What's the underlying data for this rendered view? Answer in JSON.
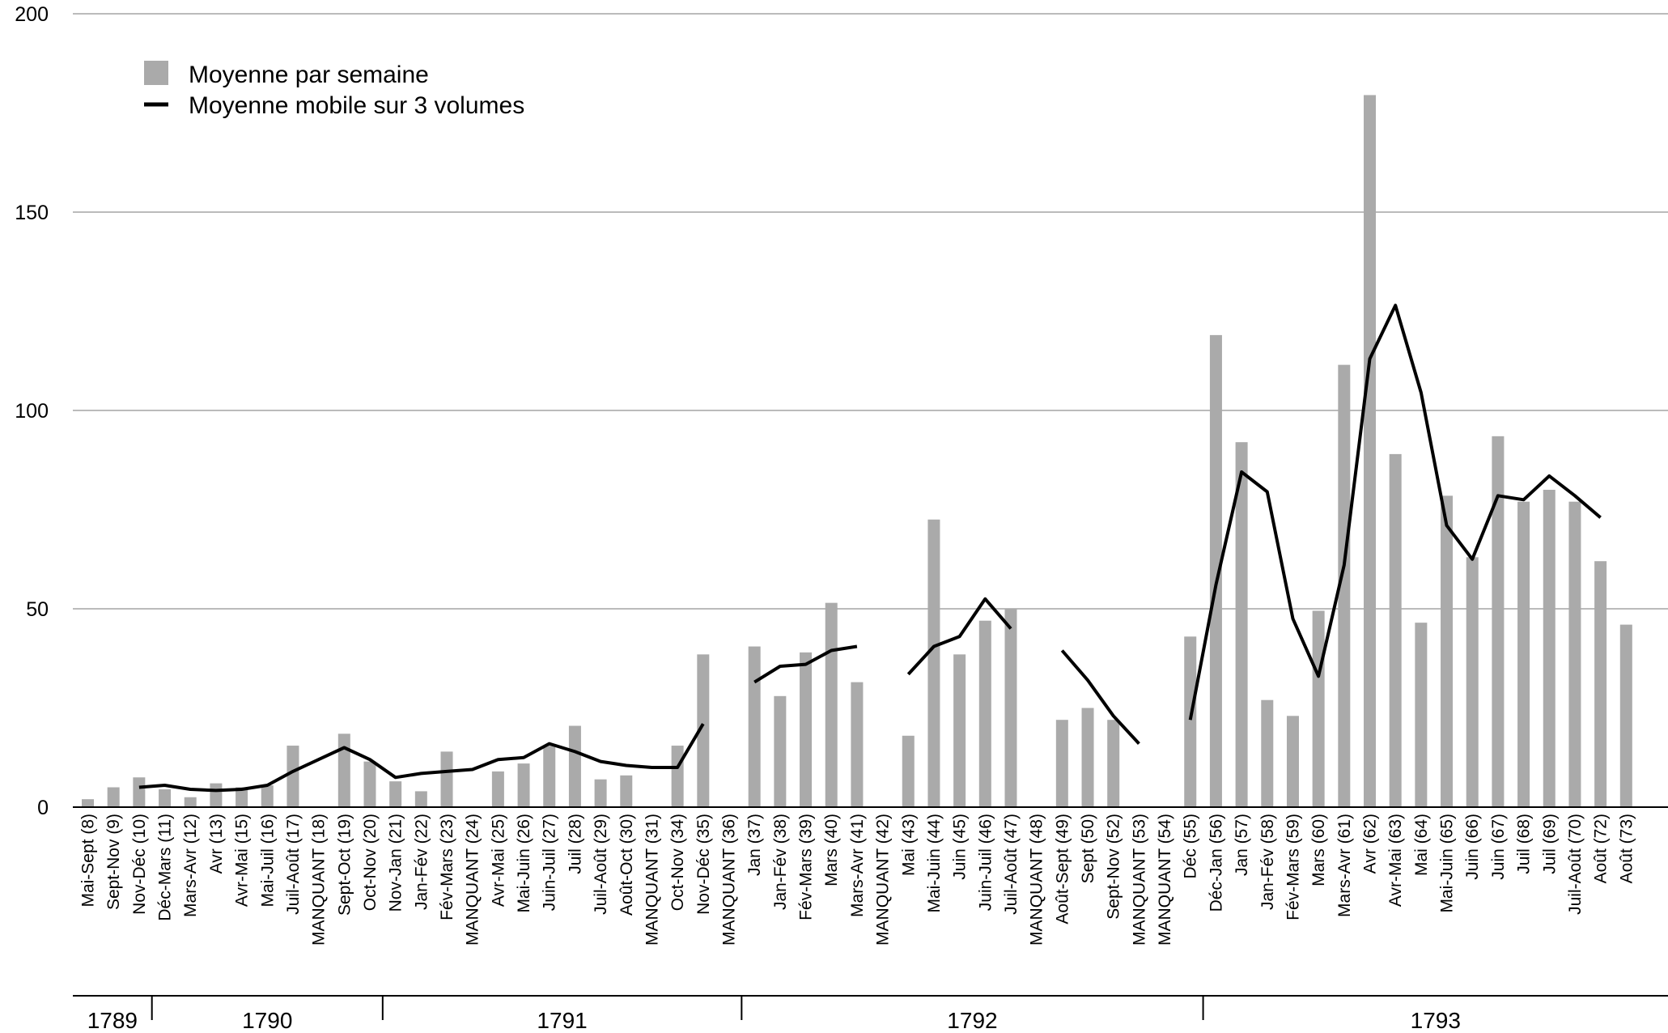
{
  "chart_data": {
    "type": "bar",
    "ylim": [
      0,
      200
    ],
    "yticks": [
      0,
      50,
      100,
      150,
      200
    ],
    "grid": true,
    "legend_position": "top-left",
    "colors": {
      "bars": "#aaaaaa",
      "line": "#000000",
      "grid": "#bbbbbb",
      "axis": "#000000"
    },
    "categories": [
      "Mai-Sept (8)",
      "Sept-Nov (9)",
      "Nov-Déc (10)",
      "Déc-Mars (11)",
      "Mars-Avr (12)",
      "Avr (13)",
      "Avr-Mai (15)",
      "Mai-Juil (16)",
      "Juil-Août (17)",
      "MANQUANT (18)",
      "Sept-Oct (19)",
      "Oct-Nov (20)",
      "Nov-Jan (21)",
      "Jan-Fév (22)",
      "Fév-Mars (23)",
      "MANQUANT (24)",
      "Avr-Mai (25)",
      "Mai-Juin (26)",
      "Juin-Juil (27)",
      "Juil (28)",
      "Juil-Août (29)",
      "Août-Oct (30)",
      "MANQUANT (31)",
      "Oct-Nov (34)",
      "Nov-Déc (35)",
      "MANQUANT (36)",
      "Jan (37)",
      "Jan-Fév (38)",
      "Fév-Mars (39)",
      "Mars (40)",
      "Mars-Avr (41)",
      "MANQUANT (42)",
      "Mai (43)",
      "Mai-Juin (44)",
      "Juin (45)",
      "Juin-Juil (46)",
      "Juil-Août (47)",
      "MANQUANT (48)",
      "Août-Sept (49)",
      "Sept (50)",
      "Sept-Nov (52)",
      "MANQUANT (53)",
      "MANQUANT (54)",
      "Déc (55)",
      "Déc-Jan (56)",
      "Jan (57)",
      "Jan-Fév (58)",
      "Fév-Mars (59)",
      "Mars (60)",
      "Mars-Avr (61)",
      "Avr (62)",
      "Avr-Mai (63)",
      "Mai (64)",
      "Mai-Juin (65)",
      "Juin (66)",
      "Juin (67)",
      "Juil (68)",
      "Juil (69)",
      "Juil-Août (70)",
      "Août (72)",
      "Août (73)"
    ],
    "series": [
      {
        "name": "Moyenne par semaine",
        "type": "bar",
        "values": [
          2,
          5,
          7.5,
          4.5,
          2.5,
          6,
          5,
          5.5,
          15.5,
          0,
          18.5,
          11.5,
          6.5,
          4,
          14,
          0,
          9,
          11,
          15.5,
          20.5,
          7,
          8,
          0,
          15.5,
          38.5,
          0,
          40.5,
          28,
          39,
          51.5,
          31.5,
          0,
          18,
          72.5,
          38.5,
          47,
          50,
          0,
          22,
          25,
          22,
          0,
          0,
          43,
          119,
          92,
          27,
          23,
          49.5,
          111.5,
          179.5,
          89,
          46.5,
          78.5,
          63,
          93.5,
          77,
          80,
          77,
          62,
          46
        ]
      },
      {
        "name": "Moyenne mobile sur 3 volumes",
        "type": "line",
        "values": [
          null,
          null,
          5,
          5.5,
          4.5,
          4.2,
          4.5,
          5.5,
          9,
          12,
          15,
          12,
          7.5,
          8.5,
          9,
          9.5,
          12,
          12.5,
          16,
          14,
          11.5,
          10.5,
          10,
          10,
          21,
          null,
          31.5,
          35.5,
          36,
          39.5,
          40.5,
          null,
          33.5,
          40.5,
          43,
          52.5,
          45,
          null,
          39.5,
          32,
          23,
          16,
          null,
          22,
          56,
          84.5,
          79.5,
          47.5,
          33,
          61,
          113,
          126.5,
          104.5,
          71,
          62.5,
          78.5,
          77.5,
          83.5,
          78.5,
          73,
          null
        ]
      }
    ],
    "year_groups": [
      {
        "label": "1789",
        "start": 0,
        "end": 2
      },
      {
        "label": "1790",
        "start": 3,
        "end": 11
      },
      {
        "label": "1791",
        "start": 12,
        "end": 25
      },
      {
        "label": "1792",
        "start": 26,
        "end": 43
      },
      {
        "label": "1793",
        "start": 44,
        "end": 60
      }
    ]
  }
}
